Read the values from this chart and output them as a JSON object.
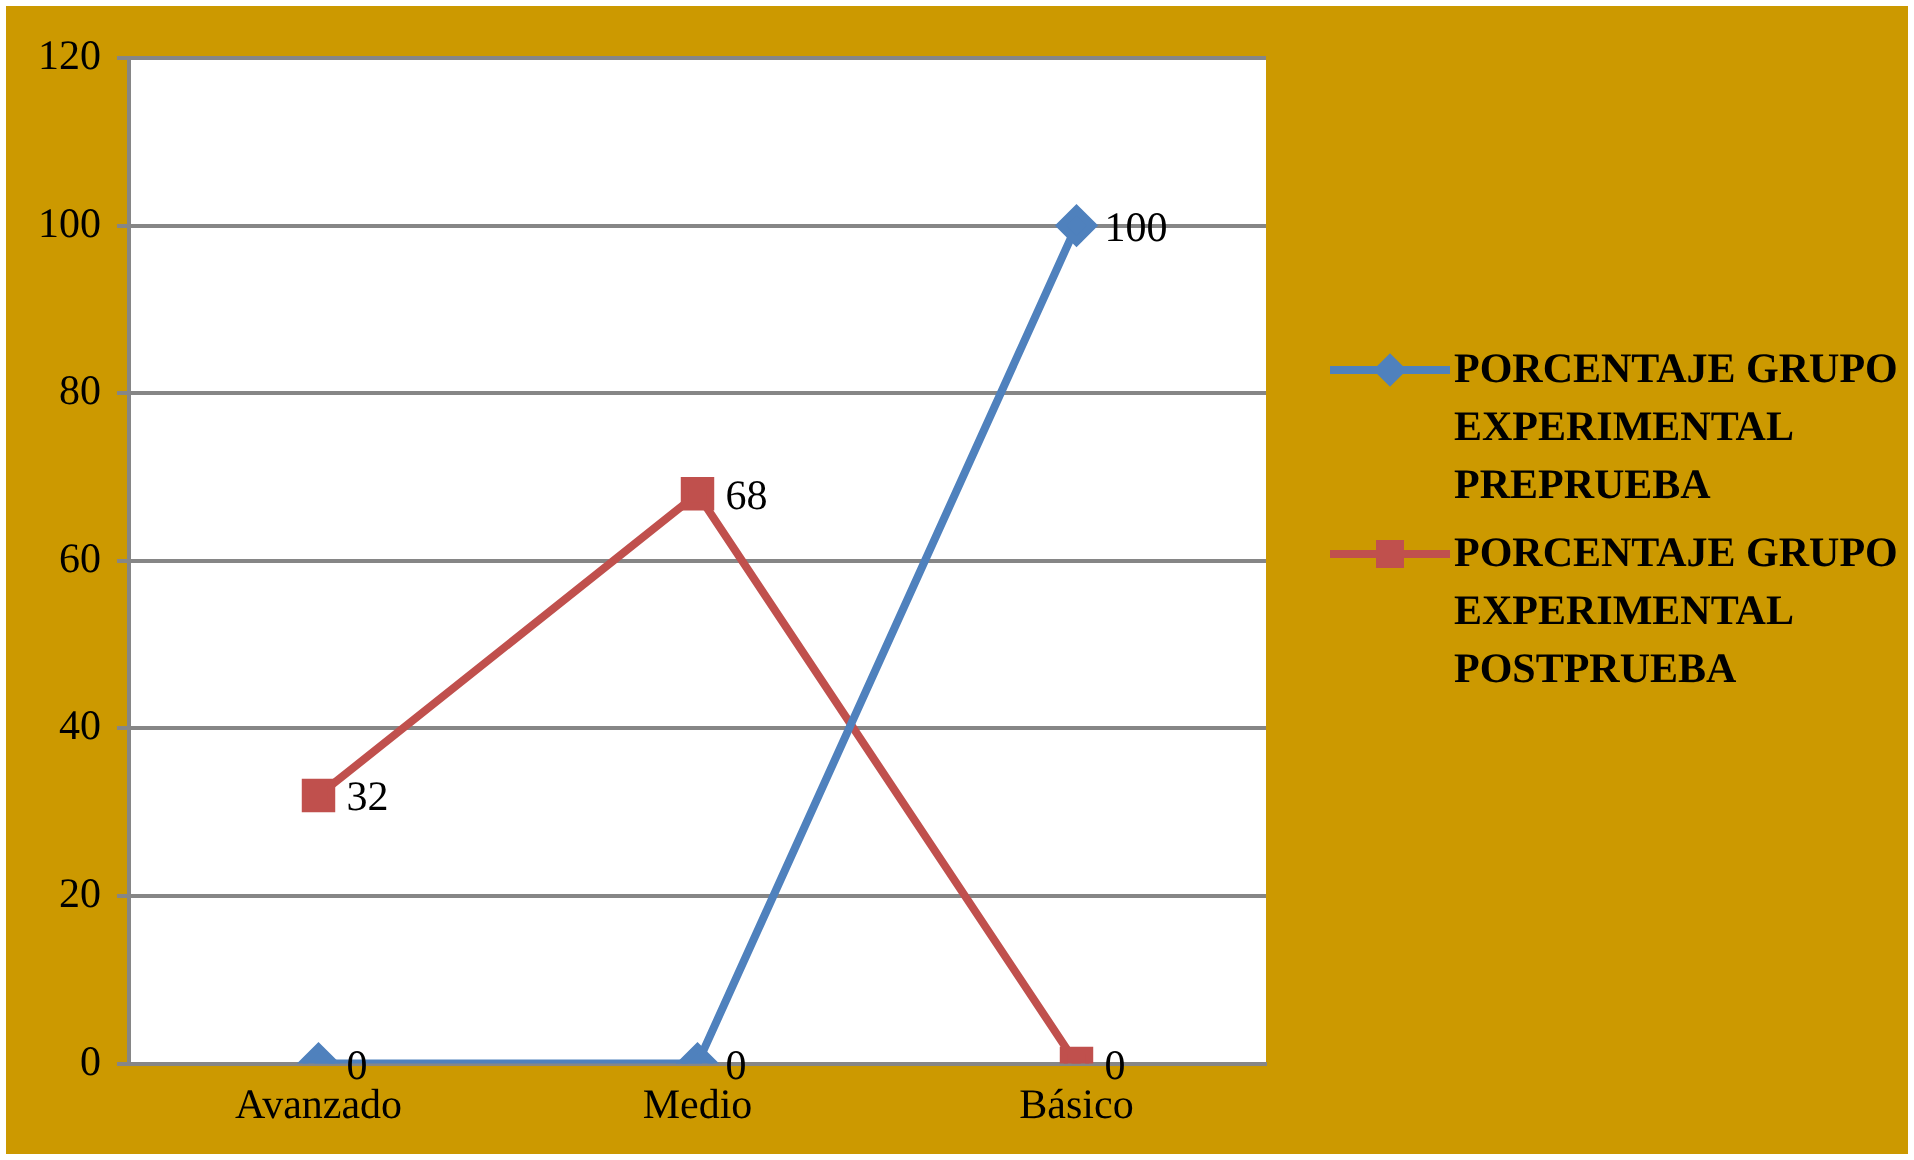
{
  "chart_data": {
    "type": "line",
    "categories": [
      "Avanzado",
      "Medio",
      "Básico"
    ],
    "series": [
      {
        "name": "PORCENTAJE GRUPO EXPERIMENTAL PREPRUEBA",
        "color": "#4f81bd",
        "marker": "diamond",
        "values": [
          0,
          0,
          100
        ]
      },
      {
        "name": "PORCENTAJE GRUPO EXPERIMENTAL POSTPRUEBA",
        "color": "#c0504d",
        "marker": "square",
        "values": [
          32,
          68,
          0
        ]
      }
    ],
    "ylim": [
      0,
      120
    ],
    "yticks": [
      0,
      20,
      40,
      60,
      80,
      100,
      120
    ],
    "grid": "y",
    "legend": "right",
    "data_labels": true
  }
}
